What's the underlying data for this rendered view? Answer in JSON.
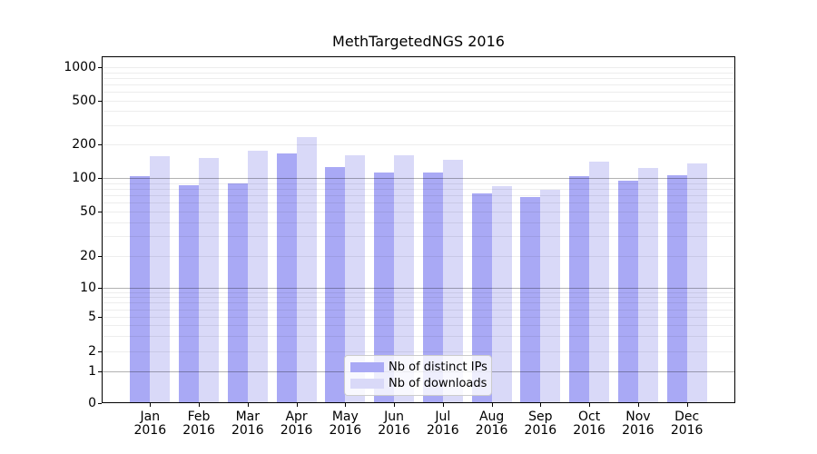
{
  "title": "MethTargetedNGS 2016",
  "chart_data": {
    "type": "bar",
    "title": "MethTargetedNGS 2016",
    "categories": [
      "Jan",
      "Feb",
      "Mar",
      "Apr",
      "May",
      "Jun",
      "Jul",
      "Aug",
      "Sep",
      "Oct",
      "Nov",
      "Dec"
    ],
    "category_year": "2016",
    "series": [
      {
        "name": "Nb of distinct IPs",
        "color": "#a9a9f5",
        "values": [
          104,
          86,
          90,
          165,
          125,
          111,
          111,
          73,
          67,
          103,
          94,
          105
        ]
      },
      {
        "name": "Nb of downloads",
        "color": "#d9d9f8",
        "values": [
          157,
          152,
          176,
          231,
          161,
          159,
          145,
          85,
          79,
          139,
          124,
          136
        ]
      }
    ],
    "y_ticks": [
      0,
      1,
      2,
      5,
      10,
      20,
      50,
      100,
      200,
      500,
      1000
    ],
    "y_scale": "symlog",
    "ylim": [
      0,
      1230
    ],
    "grid": true,
    "legend_position": "bottom-center",
    "colors": {
      "axis": "#000000",
      "major_grid": "#b3b3b3",
      "minor_grid": "#ededed"
    }
  }
}
